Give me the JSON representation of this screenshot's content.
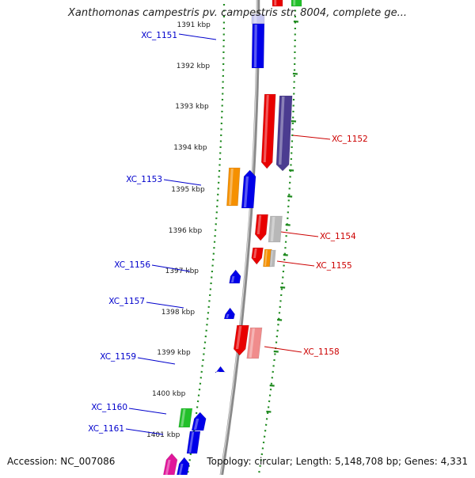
{
  "title": "Xanthomonas campestris pv. campestris str. 8004, complete ge...",
  "footer": {
    "accession": "Accession: NC_007086",
    "summary": "Topology: circular; Length: 5,148,708 bp; Genes: 4,331"
  },
  "colors": {
    "blue": "#0000e8",
    "red": "#e80000",
    "orange": "#f59000",
    "green": "#22c02a",
    "grey": "#b8b8b8",
    "purple": "#4b3c90",
    "pink": "#f08c8c",
    "magenta": "#e0169a",
    "lavender": "#c8c8f0",
    "label_blue": "#0000cc",
    "label_red": "#cc0000",
    "backbone": "#8a8a8a",
    "ring_dots": "#1f8a1f"
  },
  "kbp_ticks": [
    {
      "label": "1391 kbp",
      "kbp": 1391
    },
    {
      "label": "1392 kbp",
      "kbp": 1392
    },
    {
      "label": "1393 kbp",
      "kbp": 1393
    },
    {
      "label": "1394 kbp",
      "kbp": 1394
    },
    {
      "label": "1395 kbp",
      "kbp": 1395
    },
    {
      "label": "1396 kbp",
      "kbp": 1396
    },
    {
      "label": "1397 kbp",
      "kbp": 1397
    },
    {
      "label": "1398 kbp",
      "kbp": 1398
    },
    {
      "label": "1399 kbp",
      "kbp": 1399
    },
    {
      "label": "1400 kbp",
      "kbp": 1400
    },
    {
      "label": "1401 kbp",
      "kbp": 1401
    }
  ],
  "gene_labels": [
    {
      "name": "XC_1151",
      "strand": "minus"
    },
    {
      "name": "XC_1152",
      "strand": "plus"
    },
    {
      "name": "XC_1153",
      "strand": "minus"
    },
    {
      "name": "XC_1154",
      "strand": "plus"
    },
    {
      "name": "XC_1155",
      "strand": "plus"
    },
    {
      "name": "XC_1156",
      "strand": "minus"
    },
    {
      "name": "XC_1157",
      "strand": "minus"
    },
    {
      "name": "XC_1158",
      "strand": "plus"
    },
    {
      "name": "XC_1159",
      "strand": "minus"
    },
    {
      "name": "XC_1160",
      "strand": "minus"
    },
    {
      "name": "XC_1161",
      "strand": "minus"
    }
  ]
}
